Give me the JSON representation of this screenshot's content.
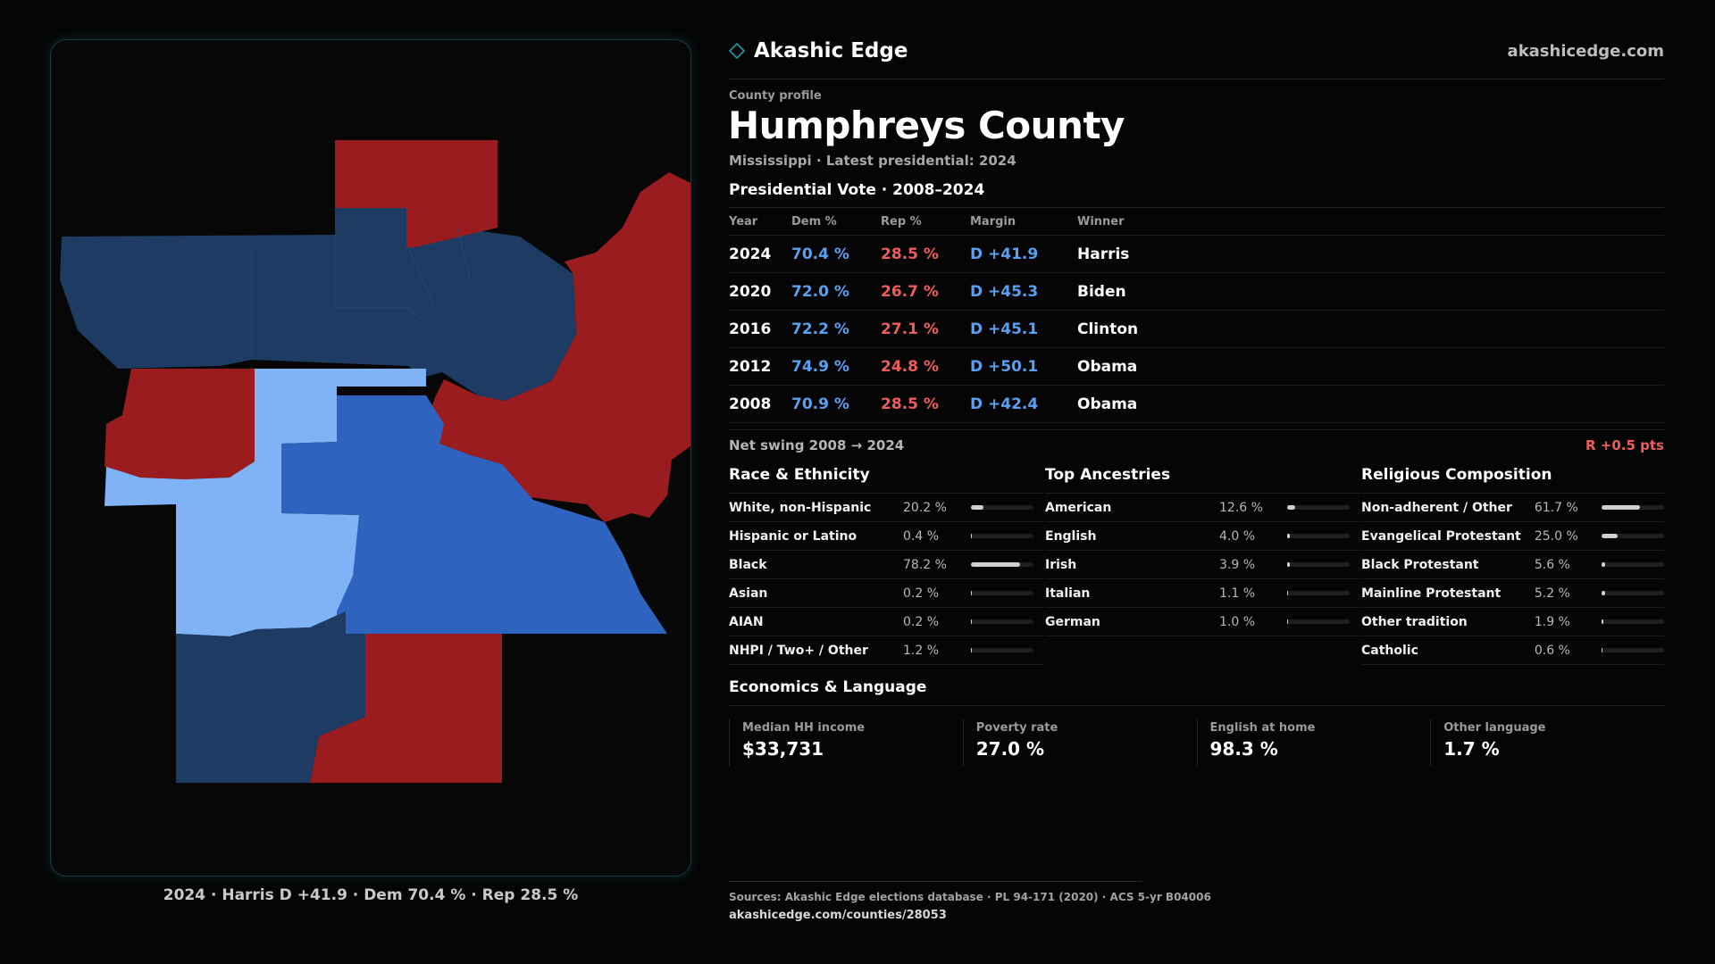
{
  "brand": {
    "name": "Akashic Edge",
    "url": "akashicedge.com"
  },
  "profile": {
    "eyebrow": "County profile",
    "county": "Humphreys County",
    "subline": "Mississippi · Latest presidential: 2024"
  },
  "votes": {
    "title": "Presidential Vote · 2008–2024",
    "headers": {
      "year": "Year",
      "dem": "Dem %",
      "rep": "Rep %",
      "margin": "Margin",
      "winner": "Winner"
    },
    "rows": [
      {
        "year": "2024",
        "dem": "70.4 %",
        "rep": "28.5 %",
        "margin": "D +41.9",
        "winner": "Harris"
      },
      {
        "year": "2020",
        "dem": "72.0 %",
        "rep": "26.7 %",
        "margin": "D +45.3",
        "winner": "Biden"
      },
      {
        "year": "2016",
        "dem": "72.2 %",
        "rep": "27.1 %",
        "margin": "D +45.1",
        "winner": "Clinton"
      },
      {
        "year": "2012",
        "dem": "74.9 %",
        "rep": "24.8 %",
        "margin": "D +50.1",
        "winner": "Obama"
      },
      {
        "year": "2008",
        "dem": "70.9 %",
        "rep": "28.5 %",
        "margin": "D +42.4",
        "winner": "Obama"
      }
    ],
    "swing_label": "Net swing 2008 → 2024",
    "swing_value": "R +0.5 pts"
  },
  "race": {
    "title": "Race & Ethnicity",
    "rows": [
      {
        "label": "White, non-Hispanic",
        "value": "20.2 %",
        "pct": 20.2
      },
      {
        "label": "Hispanic or Latino",
        "value": "0.4 %",
        "pct": 0.4
      },
      {
        "label": "Black",
        "value": "78.2 %",
        "pct": 78.2
      },
      {
        "label": "Asian",
        "value": "0.2 %",
        "pct": 0.2
      },
      {
        "label": "AIAN",
        "value": "0.2 %",
        "pct": 0.2
      },
      {
        "label": "NHPI / Two+ / Other",
        "value": "1.2 %",
        "pct": 1.2
      }
    ]
  },
  "ancestry": {
    "title": "Top Ancestries",
    "rows": [
      {
        "label": "American",
        "value": "12.6 %",
        "pct": 12.6
      },
      {
        "label": "English",
        "value": "4.0 %",
        "pct": 4.0
      },
      {
        "label": "Irish",
        "value": "3.9 %",
        "pct": 3.9
      },
      {
        "label": "Italian",
        "value": "1.1 %",
        "pct": 1.1
      },
      {
        "label": "German",
        "value": "1.0 %",
        "pct": 1.0
      }
    ]
  },
  "religion": {
    "title": "Religious Composition",
    "rows": [
      {
        "label": "Non-adherent / Other",
        "value": "61.7 %",
        "pct": 61.7
      },
      {
        "label": "Evangelical Protestant",
        "value": "25.0 %",
        "pct": 25.0
      },
      {
        "label": "Black Protestant",
        "value": "5.6 %",
        "pct": 5.6
      },
      {
        "label": "Mainline Protestant",
        "value": "5.2 %",
        "pct": 5.2
      },
      {
        "label": "Other tradition",
        "value": "1.9 %",
        "pct": 1.9
      },
      {
        "label": "Catholic",
        "value": "0.6 %",
        "pct": 0.6
      }
    ]
  },
  "economics": {
    "title": "Economics & Language",
    "cells": [
      {
        "label": "Median HH income",
        "value": "$33,731"
      },
      {
        "label": "Poverty rate",
        "value": "27.0 %"
      },
      {
        "label": "English at home",
        "value": "98.3 %"
      },
      {
        "label": "Other language",
        "value": "1.7 %"
      }
    ]
  },
  "map": {
    "caption": "2024 · Harris D +41.9 · Dem 70.4 % · Rep 28.5 %",
    "colors": {
      "rep": "#9b1c1f",
      "dem_strong": "#1d3b63",
      "dem_mid": "#2f63c0",
      "dem_light": "#7fb3f5"
    }
  },
  "footer": {
    "sources": "Sources: Akashic Edge elections database · PL 94-171 (2020) · ACS 5-yr B04006",
    "url": "akashicedge.com/counties/28053"
  },
  "colors": {
    "dem_text": "#5aa0f0",
    "rep_text": "#ef5c5c",
    "accent": "#1e9aa8"
  }
}
